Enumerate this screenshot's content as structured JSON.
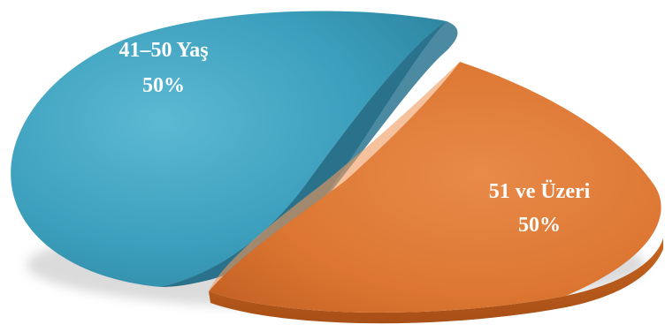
{
  "chart_data": {
    "type": "pie",
    "style": "3d-exploded",
    "title": "",
    "legend": "none",
    "slices": [
      {
        "label": "41–50 Yaş",
        "percent_label": "50%",
        "value": 50,
        "color": "#3fa0bd"
      },
      {
        "label": "51 ve Üzeri",
        "percent_label": "50%",
        "value": 50,
        "color": "#e07a36"
      }
    ]
  }
}
